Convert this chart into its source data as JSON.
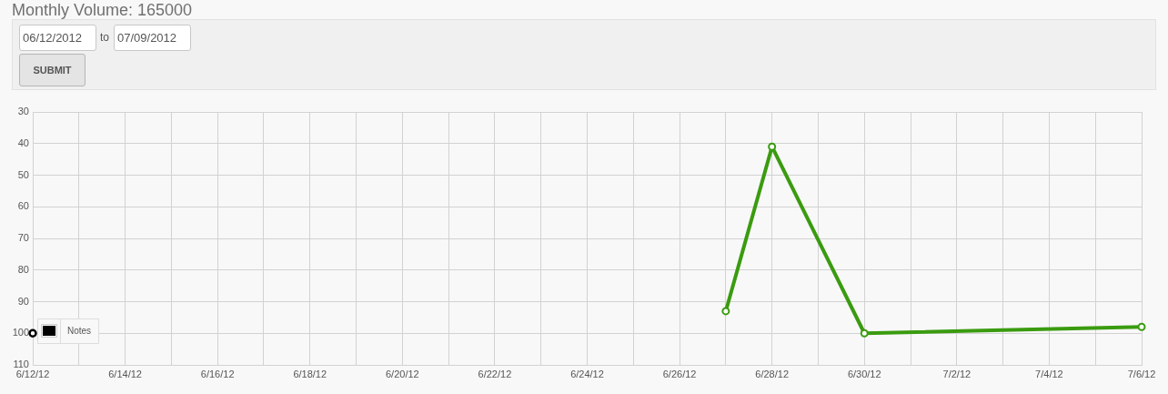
{
  "chart_data": {
    "type": "line",
    "title": "Monthly Volume: 165000",
    "annotations": [
      "06/12/2012",
      "to",
      "07/09/2012",
      "SUBMIT"
    ],
    "series": [
      {
        "color": "#3a9b0f",
        "x": [
          "2012-06-27",
          "2012-06-28",
          "2012-06-30",
          "2012-07-06"
        ],
        "values": [
          93,
          41,
          100,
          98
        ]
      },
      {
        "name": "Notes",
        "type": "scatter",
        "color": "#000000",
        "x": [
          "2012-06-12"
        ],
        "values": [
          100
        ]
      }
    ],
    "xlim": [
      "2012-06-12",
      "2012-07-06"
    ],
    "xticks": [
      {
        "value": "2012-06-12",
        "label": "6/12/12"
      },
      {
        "value": "2012-06-13",
        "label": null
      },
      {
        "value": "2012-06-14",
        "label": "6/14/12"
      },
      {
        "value": "2012-06-15",
        "label": null
      },
      {
        "value": "2012-06-16",
        "label": "6/16/12"
      },
      {
        "value": "2012-06-17",
        "label": null
      },
      {
        "value": "2012-06-18",
        "label": "6/18/12"
      },
      {
        "value": "2012-06-19",
        "label": null
      },
      {
        "value": "2012-06-20",
        "label": "6/20/12"
      },
      {
        "value": "2012-06-21",
        "label": null
      },
      {
        "value": "2012-06-22",
        "label": "6/22/12"
      },
      {
        "value": "2012-06-23",
        "label": null
      },
      {
        "value": "2012-06-24",
        "label": "6/24/12"
      },
      {
        "value": "2012-06-25",
        "label": null
      },
      {
        "value": "2012-06-26",
        "label": "6/26/12"
      },
      {
        "value": "2012-06-27",
        "label": null
      },
      {
        "value": "2012-06-28",
        "label": "6/28/12"
      },
      {
        "value": "2012-06-29",
        "label": null
      },
      {
        "value": "2012-06-30",
        "label": "6/30/12"
      },
      {
        "value": "2012-07-01",
        "label": null
      },
      {
        "value": "2012-07-02",
        "label": "7/2/12"
      },
      {
        "value": "2012-07-03",
        "label": null
      },
      {
        "value": "2012-07-04",
        "label": "7/4/12"
      },
      {
        "value": "2012-07-05",
        "label": null
      },
      {
        "value": "2012-07-06",
        "label": "7/6/12"
      }
    ],
    "ylim": [
      110,
      30
    ],
    "yticks": [
      30,
      40,
      50,
      60,
      70,
      80,
      90,
      100,
      110
    ],
    "grid": true,
    "legend": "bottom left",
    "marker": "circle"
  }
}
